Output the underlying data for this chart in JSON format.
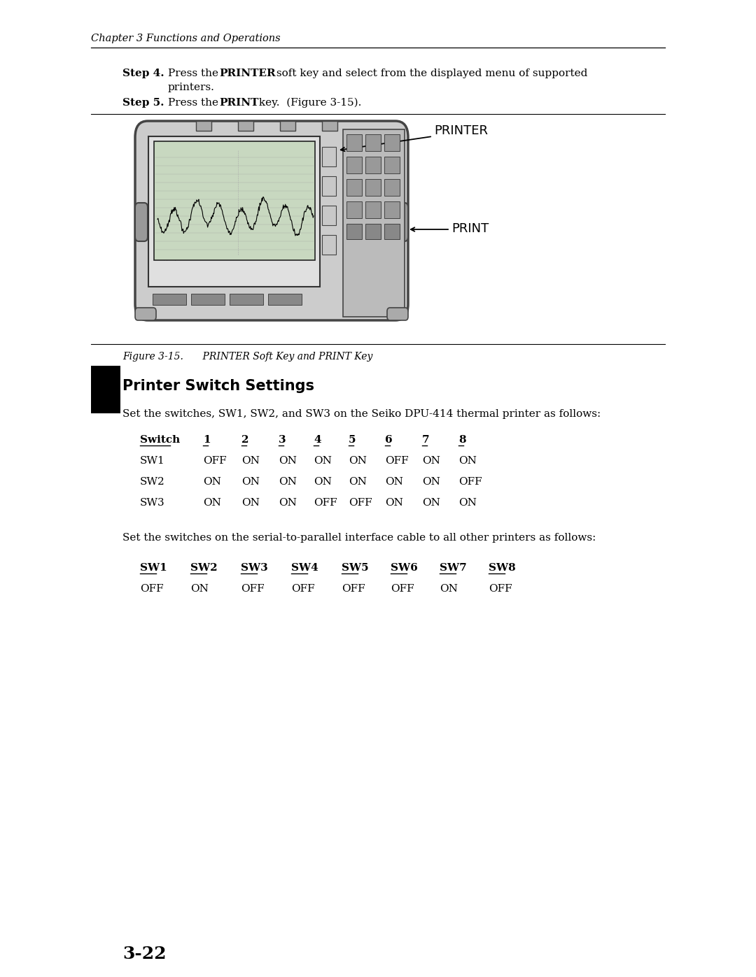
{
  "bg_color": "#ffffff",
  "page_width": 10.8,
  "page_height": 13.97,
  "header_text": "Chapter 3 Functions and Operations",
  "section_title": "Printer Switch Settings",
  "para1": "Set the switches, SW1, SW2, and SW3 on the Seiko DPU-414 thermal printer as follows:",
  "table1_headers": [
    "Switch",
    "1",
    "2",
    "3",
    "4",
    "5",
    "6",
    "7",
    "8"
  ],
  "table1_rows": [
    [
      "SW1",
      "OFF",
      "ON",
      "ON",
      "ON",
      "ON",
      "OFF",
      "ON",
      "ON"
    ],
    [
      "SW2",
      "ON",
      "ON",
      "ON",
      "ON",
      "ON",
      "ON",
      "ON",
      "OFF"
    ],
    [
      "SW3",
      "ON",
      "ON",
      "ON",
      "OFF",
      "OFF",
      "ON",
      "ON",
      "ON"
    ]
  ],
  "para2": "Set the switches on the serial-to-parallel interface cable to all other printers as follows:",
  "table2_headers": [
    "SW1",
    "SW2",
    "SW3",
    "SW4",
    "SW5",
    "SW6",
    "SW7",
    "SW8"
  ],
  "table2_row": [
    "OFF",
    "ON",
    "OFF",
    "OFF",
    "OFF",
    "OFF",
    "ON",
    "OFF"
  ],
  "footer_text": "3-22",
  "t1_cols": [
    200,
    290,
    345,
    398,
    448,
    498,
    550,
    603,
    655
  ],
  "t2_cols": [
    200,
    272,
    344,
    416,
    488,
    558,
    628,
    698
  ]
}
